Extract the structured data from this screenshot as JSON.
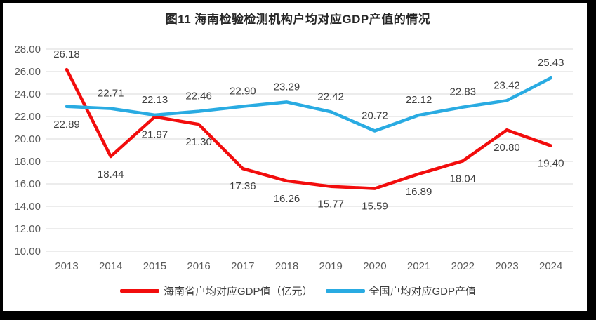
{
  "figure": {
    "title": "图11 海南检验检测机构户均对应GDP产值的情况"
  },
  "chart_data": {
    "type": "line",
    "title": "图11 海南检验检测机构户均对应GDP产值的情况",
    "categories": [
      "2013",
      "2014",
      "2015",
      "2016",
      "2017",
      "2018",
      "2019",
      "2020",
      "2021",
      "2022",
      "2023",
      "2024"
    ],
    "series": [
      {
        "name": "海南省户均对应GDP值（亿元）",
        "color": "#f20d0d",
        "values": [
          26.18,
          18.44,
          21.97,
          21.3,
          17.36,
          16.26,
          15.77,
          15.59,
          16.89,
          18.04,
          20.8,
          19.4
        ],
        "label_sides": [
          "above",
          "below",
          "below",
          "below",
          "below",
          "below",
          "below",
          "below",
          "below",
          "below",
          "below",
          "below"
        ]
      },
      {
        "name": "全国户均对应GDP产值",
        "color": "#29abe2",
        "values": [
          22.89,
          22.71,
          22.13,
          22.46,
          22.9,
          23.29,
          22.42,
          20.72,
          22.12,
          22.83,
          23.42,
          25.43
        ],
        "label_sides": [
          "below",
          "above",
          "above",
          "above",
          "above",
          "above",
          "above",
          "above",
          "above",
          "above",
          "above",
          "above"
        ]
      }
    ],
    "ylim": [
      10,
      28
    ],
    "ytick_step": 2,
    "yticks": [
      "28.00",
      "26.00",
      "24.00",
      "22.00",
      "20.00",
      "18.00",
      "16.00",
      "14.00",
      "12.00",
      "10.00"
    ],
    "xlabel": "",
    "ylabel": "",
    "grid": "horizontal-only",
    "legend_position": "bottom"
  },
  "colors": {
    "hainan_line": "#f20d0d",
    "national_line": "#29abe2",
    "gridline": "#d9d9d9",
    "axis_text": "#595959",
    "data_label_text": "#3f3f3f",
    "title_text": "#262626",
    "frame": "#000000"
  }
}
